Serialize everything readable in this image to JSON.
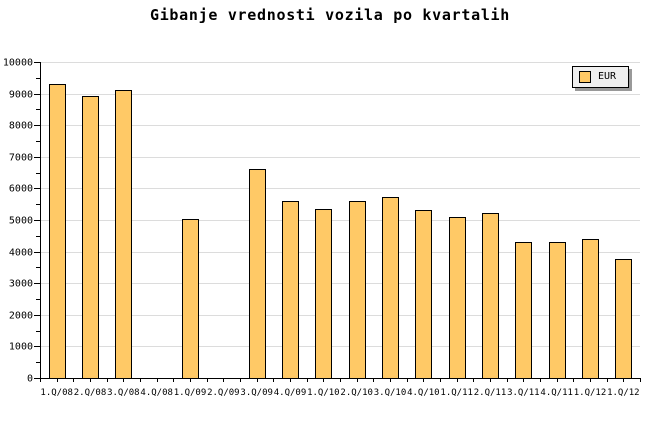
{
  "title": "Gibanje vrednosti vozila po kvartalih",
  "legend": {
    "label": "EUR"
  },
  "colors": {
    "background": "#FFFFFF",
    "bar_fill": "#FFC966",
    "bar_border": "#000000",
    "grid": "#DCDCDC",
    "axis": "#000000",
    "text": "#000000",
    "legend_bg": "#EFEFEF",
    "legend_shadow": "#999999"
  },
  "chart_data": {
    "type": "bar",
    "title": "Gibanje vrednosti vozila po kvartalih",
    "categories": [
      "1.Q/08",
      "2.Q/08",
      "3.Q/08",
      "4.Q/08",
      "1.Q/09",
      "2.Q/09",
      "3.Q/09",
      "4.Q/09",
      "1.Q/10",
      "2.Q/10",
      "3.Q/10",
      "4.Q/10",
      "1.Q/11",
      "2.Q/11",
      "3.Q/11",
      "4.Q/11",
      "1.Q/12",
      "1.Q/12"
    ],
    "series": [
      {
        "name": "EUR",
        "values": [
          9290,
          8920,
          9100,
          null,
          5040,
          null,
          6610,
          5610,
          5350,
          5600,
          5720,
          5310,
          5090,
          5220,
          4300,
          4300,
          4390,
          3760
        ]
      }
    ],
    "xlabel": "",
    "ylabel": "",
    "ylim": [
      0,
      10000
    ],
    "ytick_step": 1000,
    "ytick_minor_step": 500,
    "ytick_labels": [
      "0",
      "1000",
      "2000",
      "3000",
      "4000",
      "5000",
      "6000",
      "7000",
      "8000",
      "9000",
      "10000"
    ],
    "grid": "horizontal-major",
    "legend_position": "top-right",
    "legend_entries": [
      "EUR"
    ]
  }
}
